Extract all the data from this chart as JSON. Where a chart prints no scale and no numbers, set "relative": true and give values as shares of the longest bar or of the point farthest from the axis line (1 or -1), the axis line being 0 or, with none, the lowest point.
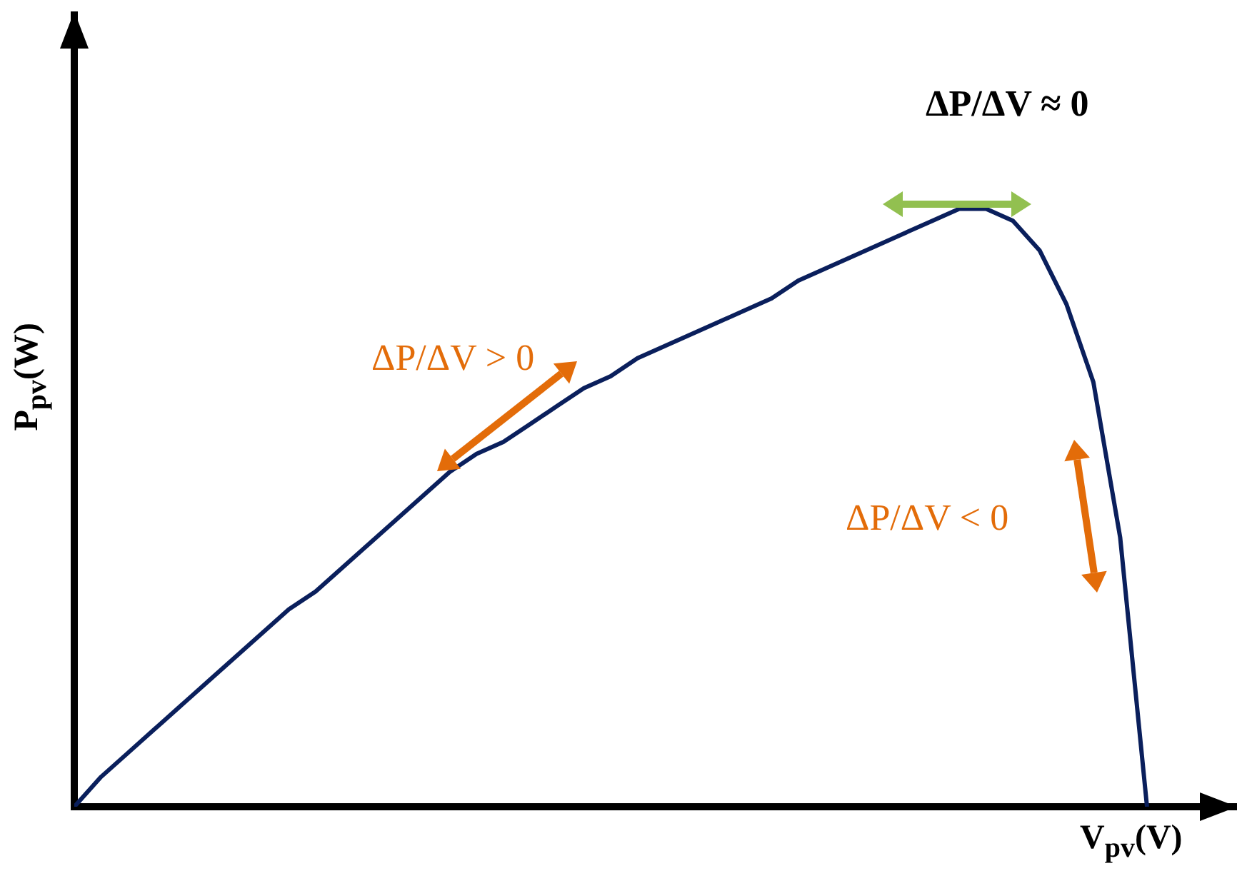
{
  "chart_data": {
    "type": "line",
    "relative": true,
    "xlabel": "V$_{pv}$(V)",
    "ylabel": "P$_{pv}$(W)",
    "categories": [
      null,
      null,
      null,
      null,
      null,
      null,
      null,
      null,
      null,
      null,
      null,
      null,
      null,
      null,
      null,
      null,
      null,
      null,
      null,
      null,
      null,
      null,
      null,
      null,
      null,
      null,
      null,
      null,
      null,
      null,
      null,
      null,
      null,
      null,
      null,
      null,
      null,
      null,
      null,
      null,
      null
    ],
    "series": [
      {
        "color": "#0a1f5c",
        "values": [
          0,
          0.05,
          0.09,
          0.13,
          0.17,
          0.21,
          0.25,
          0.29,
          0.33,
          0.36,
          0.4,
          0.44,
          0.48,
          0.52,
          0.56,
          0.59,
          0.61,
          0.64,
          0.67,
          0.7,
          0.72,
          0.75,
          0.77,
          0.79,
          0.81,
          0.83,
          0.85,
          0.88,
          0.9,
          0.92,
          0.94,
          0.96,
          0.98,
          1,
          1,
          0.98,
          0.93,
          0.84,
          0.71,
          0.45,
          0
        ]
      }
    ],
    "annotations": [
      "ΔP/ΔV ≈ 0",
      "ΔP/ΔV > 0",
      "ΔP/ΔV < 0"
    ],
    "grid": false,
    "legend": false,
    "marker": "none",
    "line_style": "solid"
  }
}
